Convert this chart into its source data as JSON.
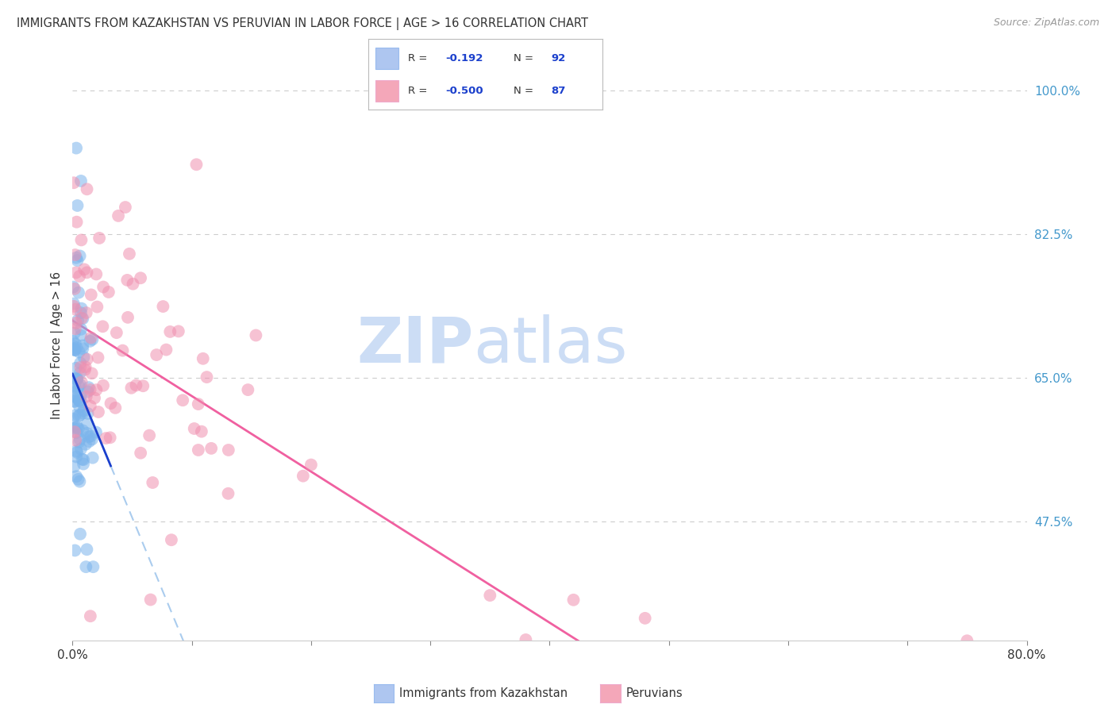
{
  "title": "IMMIGRANTS FROM KAZAKHSTAN VS PERUVIAN IN LABOR FORCE | AGE > 16 CORRELATION CHART",
  "source": "Source: ZipAtlas.com",
  "ylabel": "In Labor Force | Age > 16",
  "right_ytick_values": [
    100.0,
    82.5,
    65.0,
    47.5
  ],
  "right_ytick_labels": [
    "100.0%",
    "82.5%",
    "65.0%",
    "47.5%"
  ],
  "kaz_color": "#7ab4ec",
  "peru_color": "#f090b0",
  "kaz_trend_color": "#1a3fcc",
  "peru_trend_color": "#f060a0",
  "kaz_dash_color": "#aaccee",
  "watermark_zip": "ZIP",
  "watermark_atlas": "atlas",
  "watermark_color": "#ccddf5",
  "x_lim": [
    0.0,
    80.0
  ],
  "y_lim": [
    33.0,
    105.0
  ],
  "kaz_R": -0.192,
  "kaz_N": 92,
  "peru_R": -0.5,
  "peru_N": 87,
  "background_color": "#ffffff",
  "grid_color": "#cccccc",
  "legend_R1": "-0.192",
  "legend_N1": "92",
  "legend_R2": "-0.500",
  "legend_N2": "87",
  "legend_color1": "#aec6f0",
  "legend_color2": "#f4a7b9",
  "legend_text_color": "#1a3fcc",
  "bottom_label1": "Immigrants from Kazakhstan",
  "bottom_label2": "Peruvians",
  "kaz_trend_intercept": 65.5,
  "kaz_trend_slope": -3.5,
  "peru_trend_intercept": 72.0,
  "peru_trend_slope": -0.92
}
